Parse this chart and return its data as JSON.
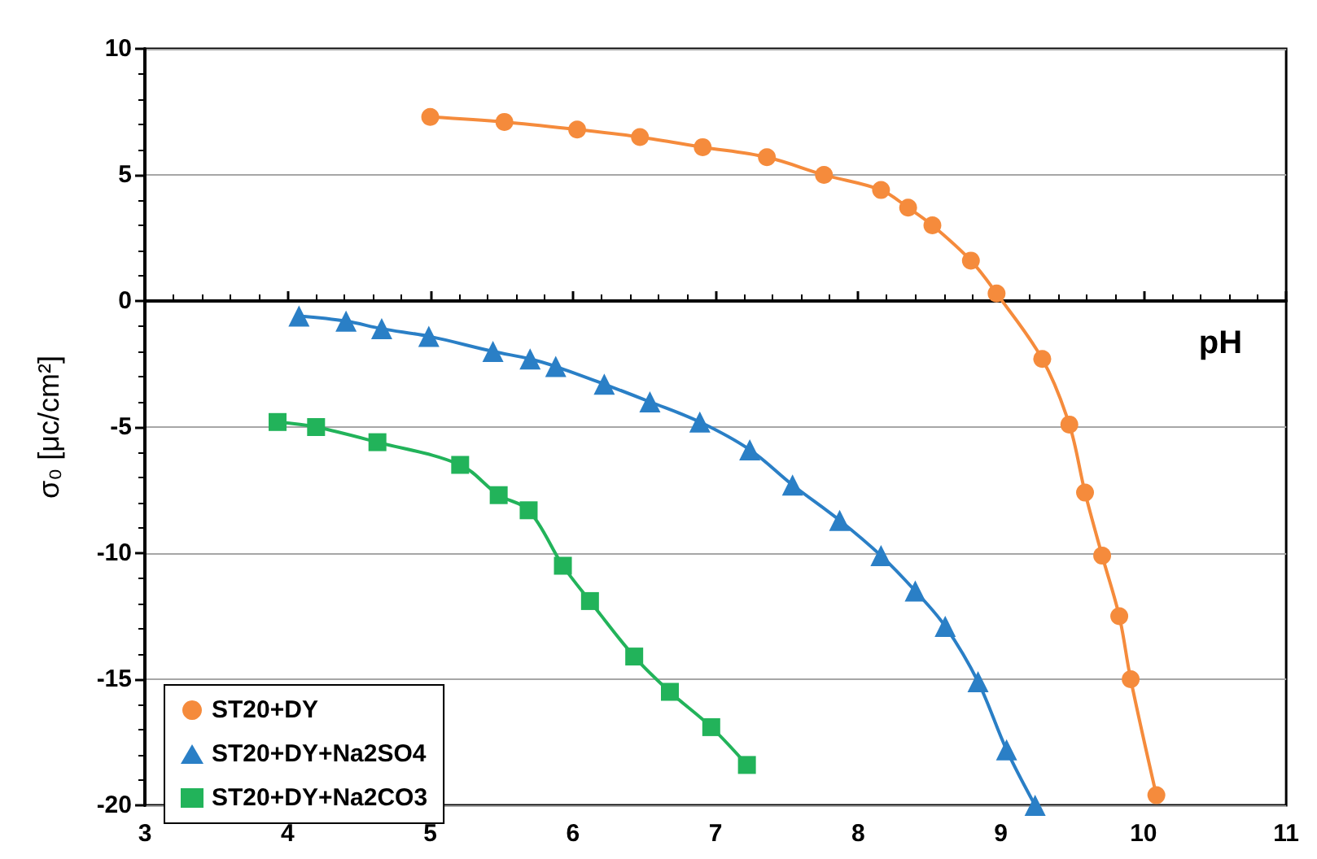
{
  "chart_data": {
    "type": "line",
    "xlabel": "pH",
    "ylabel": "σ₀ [μc/cm²]",
    "xlim": [
      3,
      11
    ],
    "xticks": [
      3,
      4,
      5,
      6,
      7,
      8,
      9,
      10,
      11
    ],
    "ylim": [
      -20,
      10
    ],
    "yticks": [
      -20,
      -15,
      -10,
      -5,
      0,
      5,
      10
    ],
    "grid": "y",
    "legend": "bottom left",
    "line_style": "solid",
    "series": [
      {
        "name": "ST20+DY",
        "color": "#f58b3c",
        "marker": "circle",
        "x": [
          5.0,
          5.52,
          6.03,
          6.47,
          6.91,
          7.36,
          7.76,
          8.16,
          8.35,
          8.52,
          8.79,
          8.97,
          9.29,
          9.48,
          9.59,
          9.71,
          9.83,
          9.91,
          10.09
        ],
        "values": [
          7.3,
          7.1,
          6.8,
          6.5,
          6.1,
          5.7,
          5.0,
          4.4,
          3.7,
          3.0,
          1.6,
          0.3,
          -2.3,
          -4.9,
          -7.6,
          -10.1,
          -12.5,
          -15.0,
          -19.6
        ]
      },
      {
        "name": "ST20+DY+Na2SO4",
        "color": "#2a7fc6",
        "marker": "triangle",
        "x": [
          4.08,
          4.41,
          4.66,
          4.99,
          5.44,
          5.7,
          5.88,
          6.22,
          6.54,
          6.89,
          7.24,
          7.54,
          7.87,
          8.16,
          8.4,
          8.61,
          8.84,
          9.04,
          9.24
        ],
        "values": [
          -0.6,
          -0.8,
          -1.1,
          -1.4,
          -2.0,
          -2.3,
          -2.6,
          -3.3,
          -4.0,
          -4.8,
          -5.9,
          -7.3,
          -8.7,
          -10.1,
          -11.5,
          -12.9,
          -15.1,
          -17.8,
          -20.0
        ]
      },
      {
        "name": "ST20+DY+Na2CO3",
        "color": "#22b35a",
        "marker": "square",
        "x": [
          3.93,
          4.2,
          4.63,
          5.21,
          5.48,
          5.69,
          5.93,
          6.12,
          6.43,
          6.68,
          6.97,
          7.22
        ],
        "values": [
          -4.8,
          -5.0,
          -5.6,
          -6.5,
          -7.7,
          -8.3,
          -10.5,
          -11.9,
          -14.1,
          -15.5,
          -16.9,
          -18.4
        ]
      }
    ]
  }
}
